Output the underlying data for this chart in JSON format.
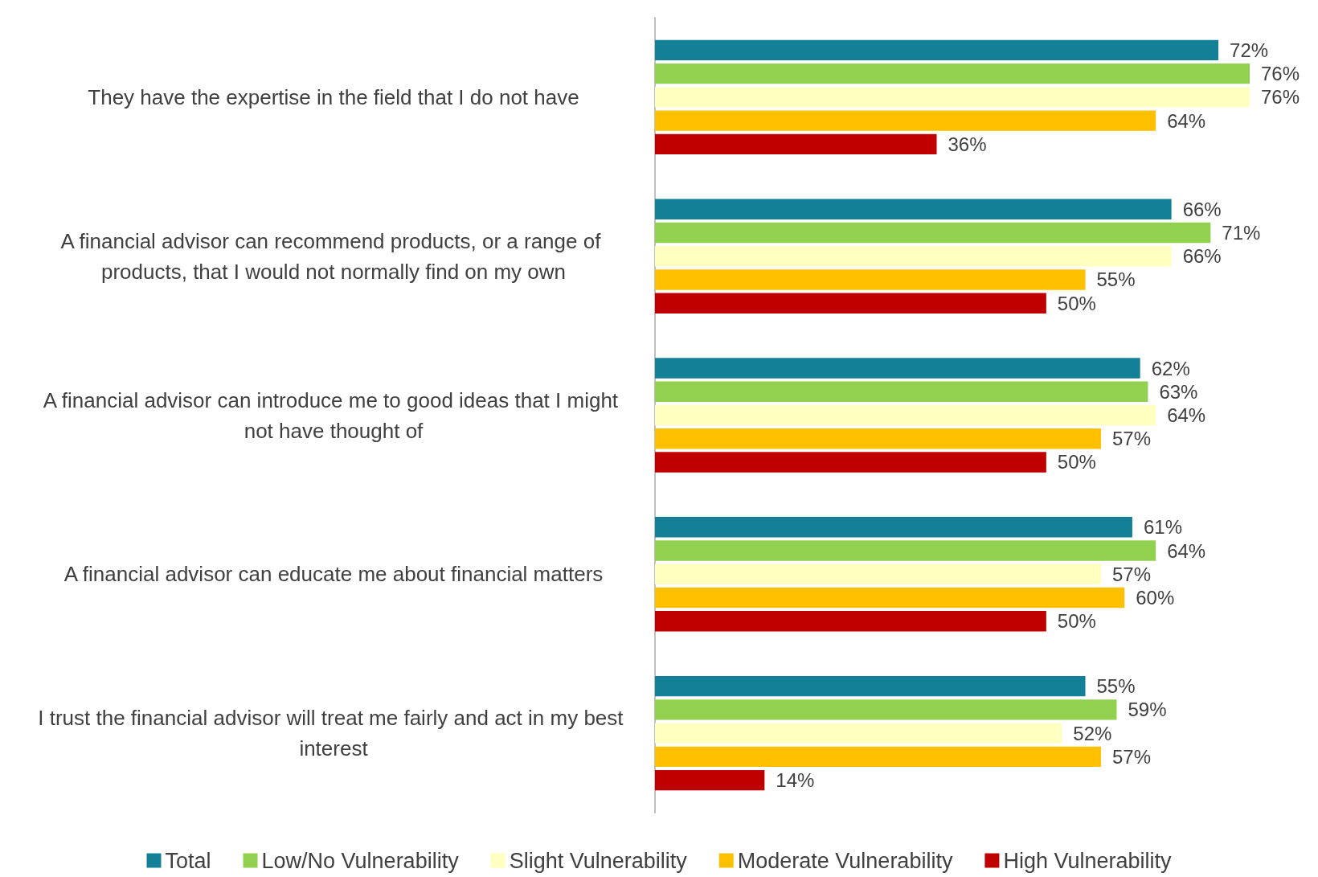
{
  "chart_data": {
    "type": "bar",
    "orientation": "horizontal",
    "categories": [
      "They have the expertise in the field that I do not have",
      "A financial advisor can recommend products, or a range of products, that I would not normally find on my own",
      "A financial advisor can introduce me to good ideas that I might not have thought of",
      "A financial advisor can educate me about financial matters",
      "I trust the financial advisor will treat me fairly and act in my best interest"
    ],
    "series": [
      {
        "name": "Total",
        "color": "#148097",
        "values": [
          72,
          66,
          62,
          61,
          55
        ],
        "value_labels": [
          "72%",
          "66%",
          "62%",
          "61%",
          "55%"
        ]
      },
      {
        "name": "Low/No Vulnerability",
        "color": "#92d050",
        "values": [
          76,
          71,
          63,
          64,
          59
        ],
        "value_labels": [
          "76%",
          "71%",
          "63%",
          "64%",
          "59%"
        ]
      },
      {
        "name": "Slight Vulnerability",
        "color": "#ffffc0",
        "values": [
          76,
          66,
          64,
          57,
          52
        ],
        "value_labels": [
          "76%",
          "66%",
          "64%",
          "57%",
          "52%"
        ]
      },
      {
        "name": "Moderate Vulnerability",
        "color": "#ffc000",
        "values": [
          64,
          55,
          57,
          60,
          57
        ],
        "value_labels": [
          "64%",
          "55%",
          "57%",
          "60%",
          "57%"
        ]
      },
      {
        "name": "High Vulnerability",
        "color": "#c00000",
        "values": [
          36,
          50,
          50,
          50,
          14
        ],
        "value_labels": [
          "36%",
          "50%",
          "50%",
          "50%",
          "14%"
        ]
      }
    ],
    "legend": "bottom"
  }
}
